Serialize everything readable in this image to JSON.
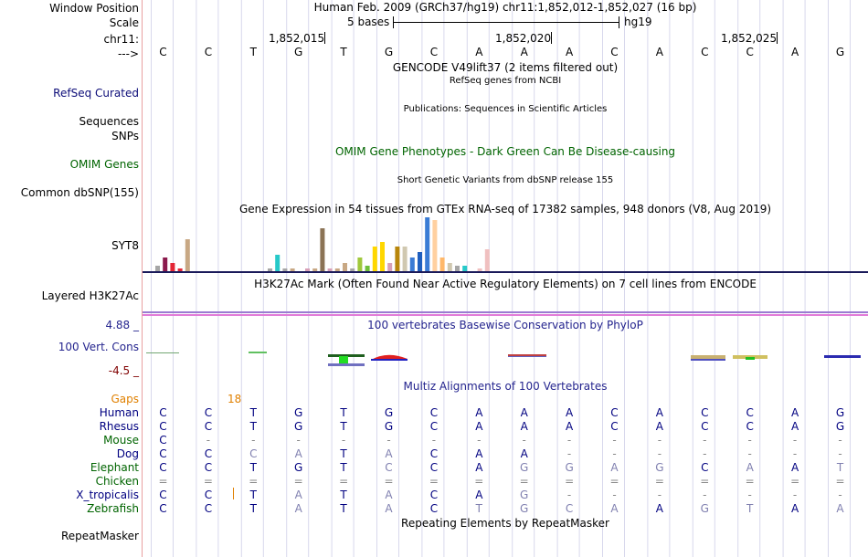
{
  "header": {
    "window_position_label": "Window Position",
    "window_position_text": "Human Feb. 2009 (GRCh37/hg19)    chr11:1,852,012-1,852,027 (16 bp)",
    "scale_label": "Scale",
    "scale_text": "5 bases",
    "scale_assembly": "hg19",
    "chrom_label": "chr11:",
    "coords": [
      "1,852,015",
      "1,852,020",
      "1,852,025"
    ],
    "strand_label": "--->",
    "bases": [
      "C",
      "C",
      "T",
      "G",
      "T",
      "G",
      "C",
      "A",
      "A",
      "A",
      "C",
      "A",
      "C",
      "C",
      "A",
      "G"
    ]
  },
  "tracks": {
    "gencode": {
      "label": "",
      "title": "GENCODE V49lift37 (2 items filtered out)"
    },
    "refseq": {
      "label": "RefSeq Curated",
      "title": "RefSeq genes from NCBI"
    },
    "sequences": {
      "label": "Sequences",
      "title": "Publications: Sequences in Scientific Articles"
    },
    "snps": {
      "label": "SNPs"
    },
    "omim": {
      "label": "OMIM Genes",
      "title": "OMIM Gene Phenotypes - Dark Green Can Be Disease-causing",
      "color": "#006400"
    },
    "dbsnp": {
      "label": "Common dbSNP(155)",
      "title": "Short Genetic Variants from dbSNP release 155"
    },
    "gtex": {
      "label": "SYT8",
      "title": "Gene Expression in 54 tissues from GTEx RNA-seq of 17382 samples, 948 donors (V8, Aug 2019)"
    },
    "h3k27ac": {
      "label": "Layered H3K27Ac",
      "title": "H3K27Ac Mark (Often Found Near Active Regulatory Elements) on 7 cell lines from ENCODE"
    },
    "cons": {
      "label": "100 Vert. Cons",
      "max": "4.88 _",
      "min": "-4.5 _",
      "title": "100 vertebrates Basewise Conservation by PhyloP",
      "color": "#24248e",
      "min_color": "#800000"
    },
    "multiz": {
      "title": "Multiz Alignments of 100 Vertebrates",
      "gaps_label": "Gaps",
      "gaps_value": "18",
      "gaps_color": "#e08000"
    },
    "repeatmasker": {
      "label": "RepeatMasker",
      "title": "Repeating Elements by RepeatMasker"
    }
  },
  "alignment": [
    {
      "species": "Human",
      "color": "#000080",
      "bases": [
        "C",
        "C",
        "T",
        "G",
        "T",
        "G",
        "C",
        "A",
        "A",
        "A",
        "C",
        "A",
        "C",
        "C",
        "A",
        "G"
      ]
    },
    {
      "species": "Rhesus",
      "color": "#000080",
      "bases": [
        "C",
        "C",
        "T",
        "G",
        "T",
        "G",
        "C",
        "A",
        "A",
        "A",
        "C",
        "A",
        "C",
        "C",
        "A",
        "G"
      ]
    },
    {
      "species": "Mouse",
      "color": "#006400",
      "bases": [
        "C",
        "-",
        "-",
        "-",
        "-",
        "-",
        "-",
        "-",
        "-",
        "-",
        "-",
        "-",
        "-",
        "-",
        "-",
        "-"
      ]
    },
    {
      "species": "Dog",
      "color": "#000080",
      "bases": [
        "C",
        "C",
        "C",
        "A",
        "T",
        "A",
        "C",
        "A",
        "A",
        "-",
        "-",
        "-",
        "-",
        "-",
        "-",
        "-"
      ]
    },
    {
      "species": "Elephant",
      "color": "#006400",
      "bases": [
        "C",
        "C",
        "T",
        "G",
        "T",
        "C",
        "C",
        "A",
        "G",
        "G",
        "A",
        "G",
        "C",
        "A",
        "A",
        "T"
      ]
    },
    {
      "species": "Chicken",
      "color": "#006400",
      "bases": [
        "=",
        "=",
        "=",
        "=",
        "=",
        "=",
        "=",
        "=",
        "=",
        "=",
        "=",
        "=",
        "=",
        "=",
        "=",
        "="
      ]
    },
    {
      "species": "X_tropicalis",
      "color": "#000080",
      "bases": [
        "C",
        "C",
        "T",
        "A",
        "T",
        "A",
        "C",
        "A",
        "G",
        "-",
        "-",
        "-",
        "-",
        "-",
        "-",
        "-"
      ]
    },
    {
      "species": "Zebrafish",
      "color": "#006400",
      "bases": [
        "C",
        "C",
        "T",
        "A",
        "T",
        "A",
        "C",
        "T",
        "G",
        "C",
        "A",
        "A",
        "G",
        "T",
        "A",
        "A"
      ]
    }
  ],
  "gtex_values": [
    2,
    5,
    3,
    1,
    12,
    0,
    0,
    0,
    0,
    0,
    0,
    0,
    0,
    0,
    0,
    1,
    6,
    1,
    1,
    0,
    1,
    1,
    16,
    1,
    1,
    3,
    1,
    5,
    2,
    9,
    11,
    3,
    9,
    9,
    5,
    7,
    20,
    19,
    5,
    3,
    2,
    2,
    0,
    1,
    8
  ],
  "gtex_colors": [
    "#a6a6a6",
    "#8b1a4d",
    "#e32636",
    "#e32636",
    "#c8a884",
    "#a6a6a6",
    "#a6a6a6",
    "#a6a6a6",
    "#a6a6a6",
    "#a6a6a6",
    "#a6a6a6",
    "#a6a6a6",
    "#a6a6a6",
    "#a6a6a6",
    "#a6a6a6",
    "#a6a6a6",
    "#27c9c9",
    "#a6a6a6",
    "#c8a884",
    "#a6a6a6",
    "#d8a0b8",
    "#c8a884",
    "#8b7355",
    "#d8a0b8",
    "#c8a884",
    "#c8a884",
    "#a6a6a6",
    "#a0c83c",
    "#6fbf3a",
    "#ffd700",
    "#ffd700",
    "#d8a0b8",
    "#b8860b",
    "#d0c8b0",
    "#3a7bd5",
    "#1f5fbf",
    "#3a7bd5",
    "#ffd0a0",
    "#ffb86a",
    "#d0c8b0",
    "#a6a6a6",
    "#27c9c9",
    "#a6a6a6",
    "#f0c0c0",
    "#f0c0c0"
  ]
}
